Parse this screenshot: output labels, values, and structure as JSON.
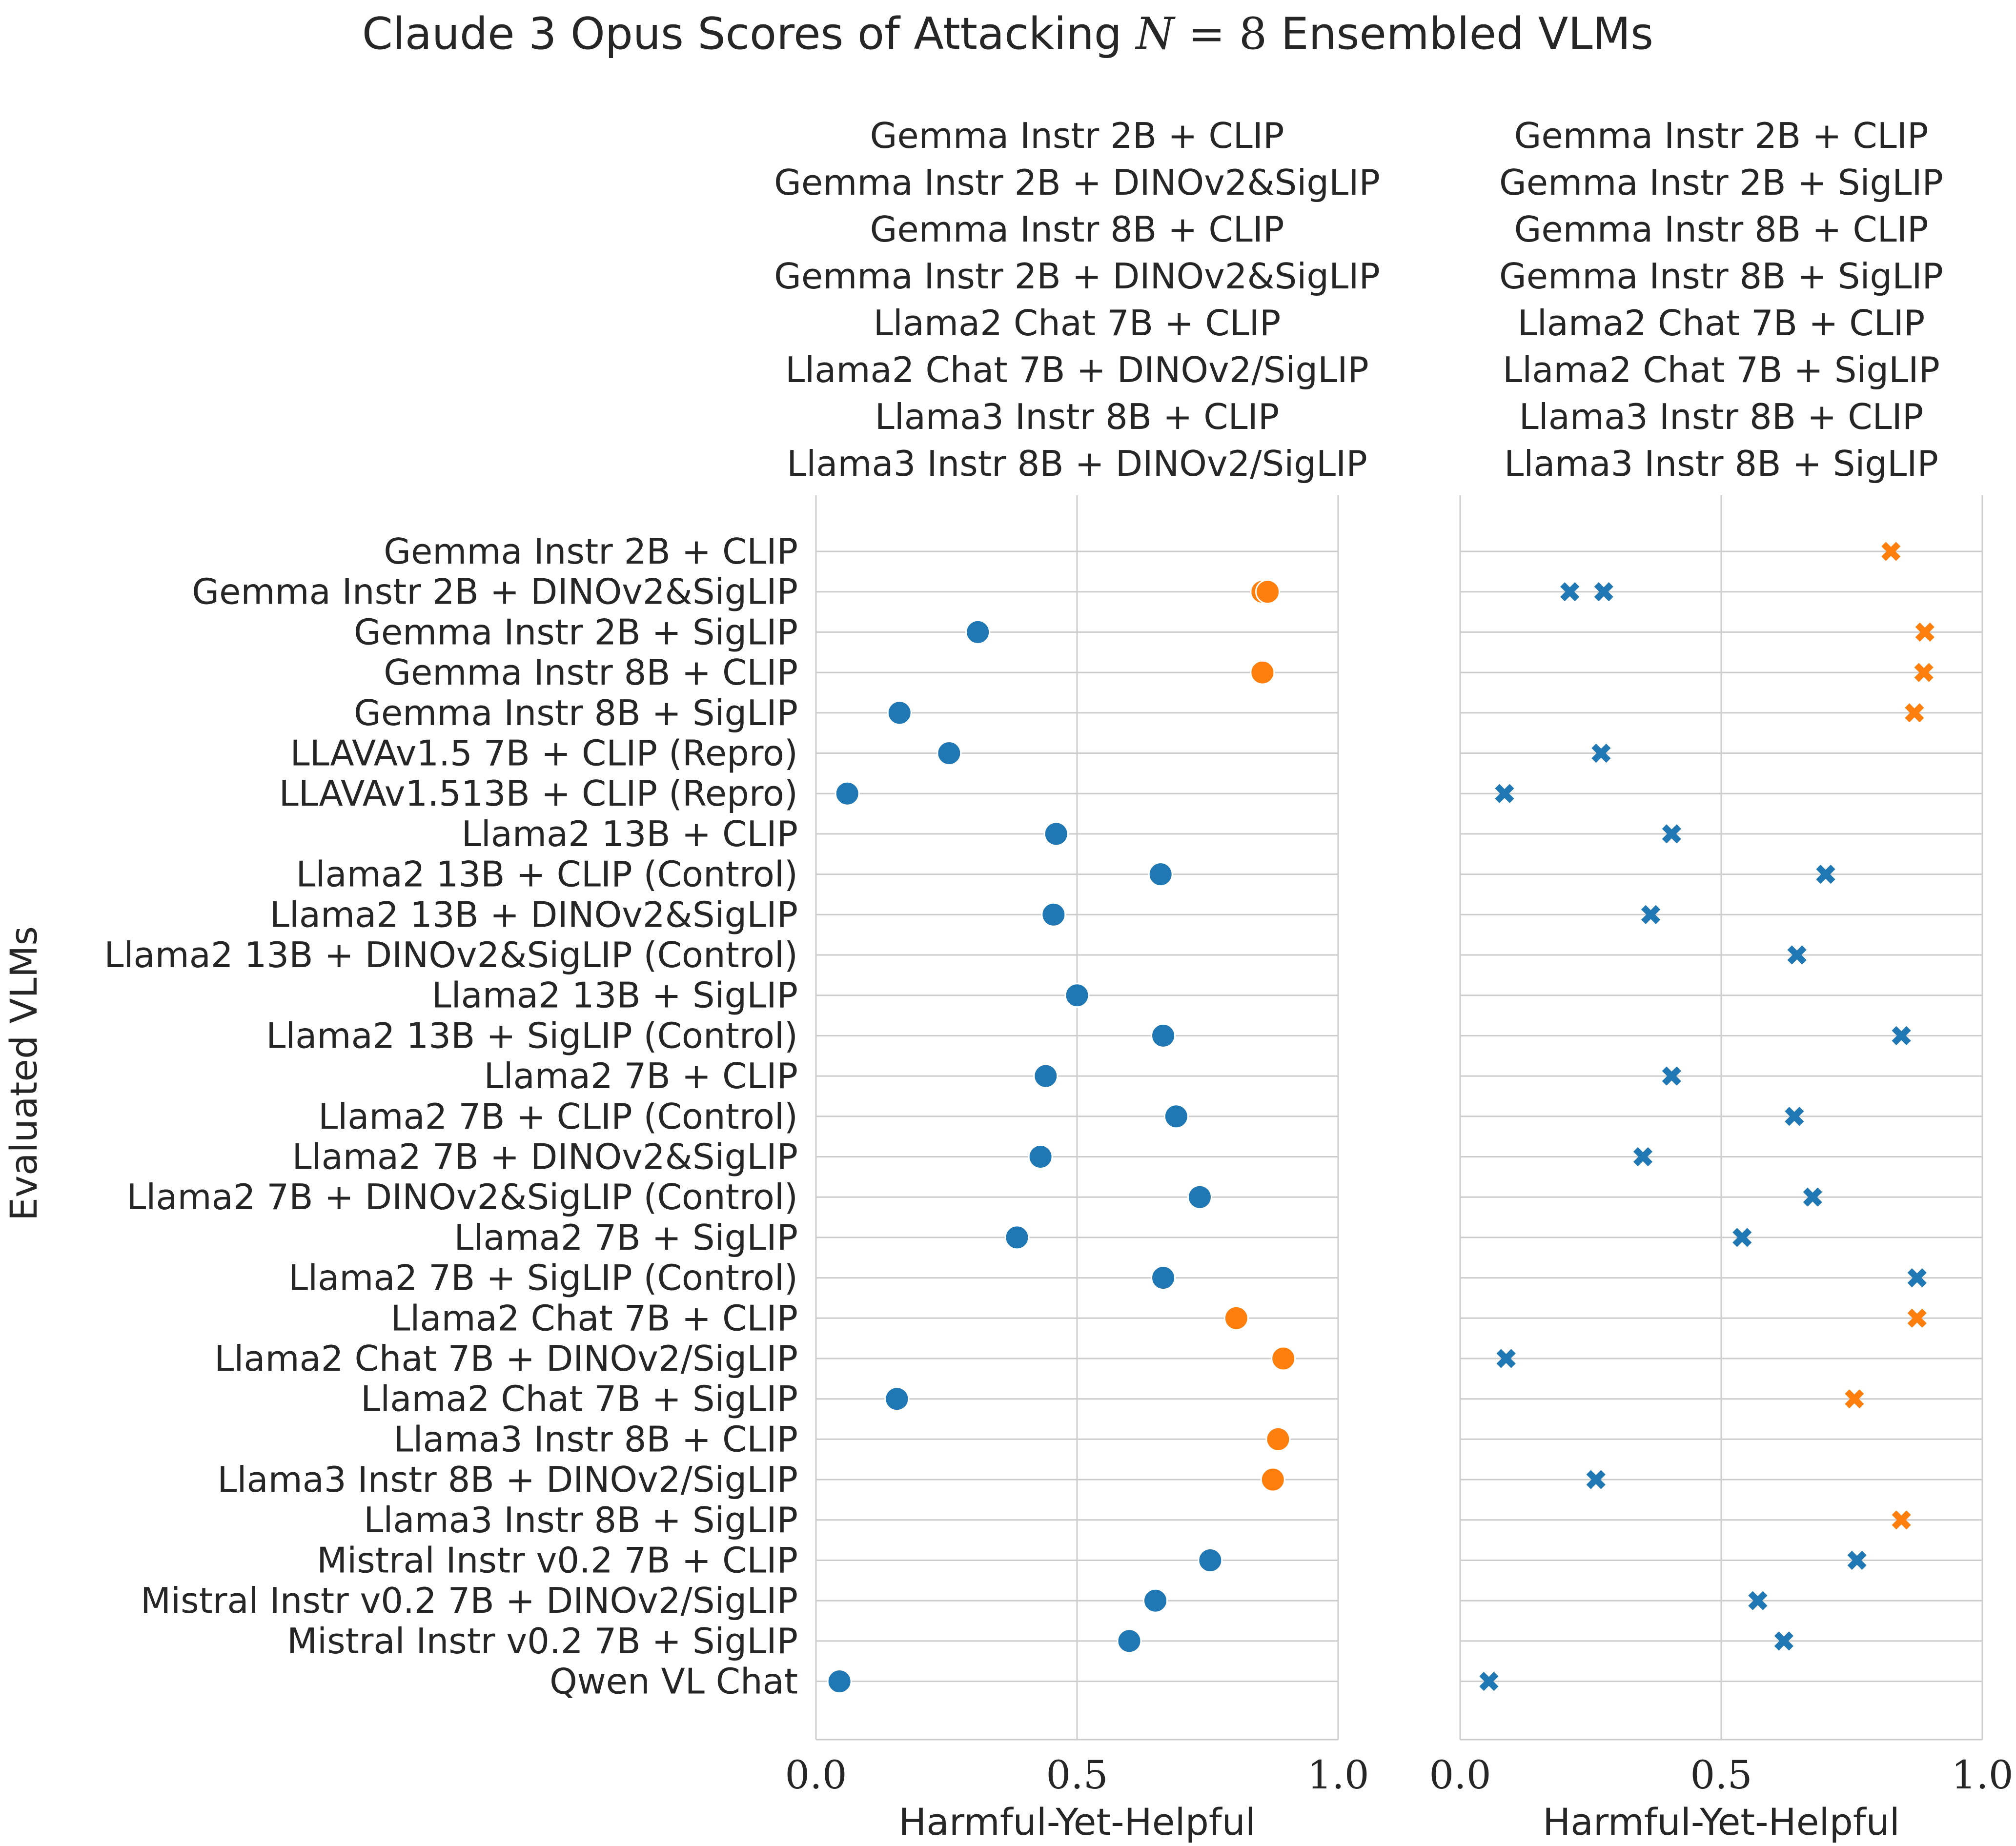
{
  "chart_data": {
    "type": "scatter",
    "title": "Claude 3 Opus Scores of Attacking N = 8 Ensembled VLMs",
    "title_parts": [
      "Claude 3 Opus Scores of Attacking ",
      "N",
      " = 8",
      " Ensembled VLMs"
    ],
    "ylabel": "Evaluated VLMs",
    "categories": [
      "Gemma Instr 2B + CLIP",
      "Gemma Instr 2B + DINOv2&SigLIP",
      "Gemma Instr 2B + SigLIP",
      "Gemma Instr 8B + CLIP",
      "Gemma Instr 8B + SigLIP",
      "LLAVAv1.5 7B + CLIP (Repro)",
      "LLAVAv1.513B + CLIP (Repro)",
      "Llama2 13B + CLIP",
      "Llama2 13B + CLIP (Control)",
      "Llama2 13B + DINOv2&SigLIP",
      "Llama2 13B + DINOv2&SigLIP (Control)",
      "Llama2 13B + SigLIP",
      "Llama2 13B + SigLIP (Control)",
      "Llama2 7B + CLIP",
      "Llama2 7B + CLIP (Control)",
      "Llama2 7B + DINOv2&SigLIP",
      "Llama2 7B + DINOv2&SigLIP (Control)",
      "Llama2 7B + SigLIP",
      "Llama2 7B + SigLIP (Control)",
      "Llama2 Chat 7B + CLIP",
      "Llama2 Chat 7B + DINOv2/SigLIP",
      "Llama2 Chat 7B + SigLIP",
      "Llama3 Instr 8B + CLIP",
      "Llama3 Instr 8B + DINOv2/SigLIP",
      "Llama3 Instr 8B + SigLIP",
      "Mistral Instr v0.2 7B + CLIP",
      "Mistral Instr v0.2 7B + DINOv2/SigLIP",
      "Mistral Instr v0.2 7B + SigLIP",
      "Qwen VL Chat"
    ],
    "colors": {
      "attacked": "#ff7f0e",
      "not_attacked": "#1f77b4"
    },
    "panels": [
      {
        "title_lines": [
          "Gemma Instr 2B + CLIP",
          "Gemma Instr 2B + DINOv2&SigLIP",
          "Gemma Instr 8B + CLIP",
          "Gemma Instr 2B + DINOv2&SigLIP",
          "Llama2 Chat 7B + CLIP",
          "Llama2 Chat 7B + DINOv2/SigLIP",
          "Llama3 Instr 8B + CLIP",
          "Llama3 Instr 8B + DINOv2/SigLIP"
        ],
        "xlabel": "Harmful-Yet-Helpful",
        "xlim": [
          0,
          1
        ],
        "xticks": [
          "0.0",
          "0.5",
          "1.0"
        ],
        "xtick_values": [
          0,
          0.5,
          1
        ],
        "marker": "circle",
        "points": [
          {
            "row": 1,
            "x": 0.855,
            "group": "attacked"
          },
          {
            "row": 1,
            "x": 0.865,
            "group": "attacked"
          },
          {
            "row": 2,
            "x": 0.31,
            "group": "not_attacked"
          },
          {
            "row": 3,
            "x": 0.855,
            "group": "attacked"
          },
          {
            "row": 4,
            "x": 0.16,
            "group": "not_attacked"
          },
          {
            "row": 5,
            "x": 0.255,
            "group": "not_attacked"
          },
          {
            "row": 6,
            "x": 0.06,
            "group": "not_attacked"
          },
          {
            "row": 7,
            "x": 0.46,
            "group": "not_attacked"
          },
          {
            "row": 8,
            "x": 0.66,
            "group": "not_attacked"
          },
          {
            "row": 9,
            "x": 0.455,
            "group": "not_attacked"
          },
          {
            "row": 11,
            "x": 0.5,
            "group": "not_attacked"
          },
          {
            "row": 12,
            "x": 0.665,
            "group": "not_attacked"
          },
          {
            "row": 13,
            "x": 0.44,
            "group": "not_attacked"
          },
          {
            "row": 14,
            "x": 0.69,
            "group": "not_attacked"
          },
          {
            "row": 15,
            "x": 0.43,
            "group": "not_attacked"
          },
          {
            "row": 16,
            "x": 0.735,
            "group": "not_attacked"
          },
          {
            "row": 17,
            "x": 0.385,
            "group": "not_attacked"
          },
          {
            "row": 18,
            "x": 0.665,
            "group": "not_attacked"
          },
          {
            "row": 19,
            "x": 0.805,
            "group": "attacked"
          },
          {
            "row": 20,
            "x": 0.895,
            "group": "attacked"
          },
          {
            "row": 21,
            "x": 0.155,
            "group": "not_attacked"
          },
          {
            "row": 22,
            "x": 0.885,
            "group": "attacked"
          },
          {
            "row": 23,
            "x": 0.875,
            "group": "attacked"
          },
          {
            "row": 25,
            "x": 0.755,
            "group": "not_attacked"
          },
          {
            "row": 26,
            "x": 0.65,
            "group": "not_attacked"
          },
          {
            "row": 27,
            "x": 0.6,
            "group": "not_attacked"
          },
          {
            "row": 28,
            "x": 0.045,
            "group": "not_attacked"
          }
        ]
      },
      {
        "title_lines": [
          "Gemma Instr 2B + CLIP",
          "Gemma Instr 2B + SigLIP",
          "Gemma Instr 8B + CLIP",
          "Gemma Instr 8B + SigLIP",
          "Llama2 Chat 7B + CLIP",
          "Llama2 Chat 7B + SigLIP",
          "Llama3 Instr 8B + CLIP",
          "Llama3 Instr 8B + SigLIP"
        ],
        "xlabel": "Harmful-Yet-Helpful",
        "xlim": [
          0,
          1
        ],
        "xticks": [
          "0.0",
          "0.5",
          "1.0"
        ],
        "xtick_values": [
          0,
          0.5,
          1
        ],
        "marker": "x",
        "points": [
          {
            "row": 0,
            "x": 0.825,
            "group": "attacked"
          },
          {
            "row": 1,
            "x": 0.21,
            "group": "not_attacked"
          },
          {
            "row": 1,
            "x": 0.275,
            "group": "not_attacked"
          },
          {
            "row": 2,
            "x": 0.89,
            "group": "attacked"
          },
          {
            "row": 3,
            "x": 0.888,
            "group": "attacked"
          },
          {
            "row": 4,
            "x": 0.87,
            "group": "attacked"
          },
          {
            "row": 5,
            "x": 0.27,
            "group": "not_attacked"
          },
          {
            "row": 6,
            "x": 0.085,
            "group": "not_attacked"
          },
          {
            "row": 7,
            "x": 0.405,
            "group": "not_attacked"
          },
          {
            "row": 8,
            "x": 0.7,
            "group": "not_attacked"
          },
          {
            "row": 9,
            "x": 0.365,
            "group": "not_attacked"
          },
          {
            "row": 10,
            "x": 0.645,
            "group": "not_attacked"
          },
          {
            "row": 12,
            "x": 0.845,
            "group": "not_attacked"
          },
          {
            "row": 13,
            "x": 0.405,
            "group": "not_attacked"
          },
          {
            "row": 14,
            "x": 0.64,
            "group": "not_attacked"
          },
          {
            "row": 15,
            "x": 0.35,
            "group": "not_attacked"
          },
          {
            "row": 16,
            "x": 0.675,
            "group": "not_attacked"
          },
          {
            "row": 17,
            "x": 0.54,
            "group": "not_attacked"
          },
          {
            "row": 18,
            "x": 0.875,
            "group": "not_attacked"
          },
          {
            "row": 19,
            "x": 0.875,
            "group": "attacked"
          },
          {
            "row": 20,
            "x": 0.088,
            "group": "not_attacked"
          },
          {
            "row": 21,
            "x": 0.755,
            "group": "attacked"
          },
          {
            "row": 23,
            "x": 0.26,
            "group": "not_attacked"
          },
          {
            "row": 24,
            "x": 0.845,
            "group": "attacked"
          },
          {
            "row": 25,
            "x": 0.76,
            "group": "not_attacked"
          },
          {
            "row": 26,
            "x": 0.57,
            "group": "not_attacked"
          },
          {
            "row": 27,
            "x": 0.62,
            "group": "not_attacked"
          },
          {
            "row": 28,
            "x": 0.055,
            "group": "not_attacked"
          }
        ]
      }
    ]
  }
}
